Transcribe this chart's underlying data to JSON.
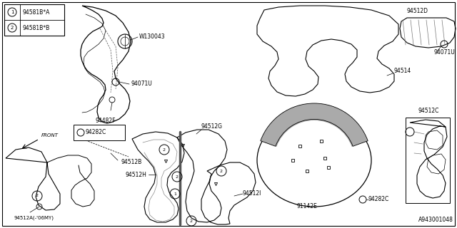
{
  "bg_color": "#ffffff",
  "line_color": "#000000",
  "fig_width": 6.4,
  "fig_height": 3.2,
  "dpi": 100,
  "legend_items": [
    {
      "num": "1",
      "code": "94581B*A"
    },
    {
      "num": "2",
      "code": "94581B*B"
    }
  ],
  "diagram_code": "A943001048"
}
